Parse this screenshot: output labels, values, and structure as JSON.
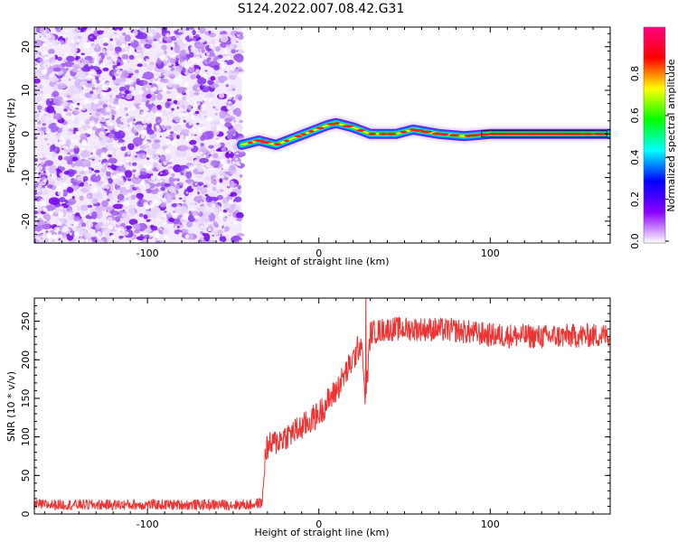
{
  "title": "S124.2022.007.08.42.G31",
  "chart_data": [
    {
      "type": "heatmap",
      "xlabel": "Height of straight line (km)",
      "ylabel": "Frequency (Hz)",
      "xlim": [
        -166,
        170
      ],
      "ylim": [
        -25,
        24.5
      ],
      "xticks": [
        -100,
        0,
        100
      ],
      "yticks": [
        -20,
        -10,
        0,
        10,
        20
      ],
      "colorbar": {
        "label": "Normalized spectral amplitude",
        "range": [
          0,
          1
        ],
        "ticks": [
          "0.0",
          "0.2",
          "0.4",
          "0.6",
          "0.8"
        ],
        "colormap": "hsv-rainbow",
        "colors": [
          "#ffffff",
          "#8b00ff",
          "#0000ff",
          "#00ffff",
          "#00ff00",
          "#ffff00",
          "#ff0000",
          "#ff0080"
        ]
      },
      "noise_region_end_km": -45,
      "signal_track": [
        {
          "x": -45,
          "y": -2.5
        },
        {
          "x": -35,
          "y": -1.5
        },
        {
          "x": -25,
          "y": -2.5
        },
        {
          "x": -15,
          "y": -1
        },
        {
          "x": -5,
          "y": 0.5
        },
        {
          "x": 5,
          "y": 2
        },
        {
          "x": 10,
          "y": 2.5
        },
        {
          "x": 20,
          "y": 1.5
        },
        {
          "x": 30,
          "y": 0
        },
        {
          "x": 45,
          "y": 0
        },
        {
          "x": 55,
          "y": 1
        },
        {
          "x": 70,
          "y": 0
        },
        {
          "x": 85,
          "y": -0.5
        },
        {
          "x": 100,
          "y": 0
        },
        {
          "x": 130,
          "y": 0
        },
        {
          "x": 170,
          "y": 0
        }
      ]
    },
    {
      "type": "line",
      "xlabel": "Height of straight line (km)",
      "ylabel": "SNR (10 * v/v)",
      "xlim": [
        -166,
        170
      ],
      "ylim": [
        0,
        280
      ],
      "xticks": [
        -100,
        0,
        100
      ],
      "yticks": [
        0,
        50,
        100,
        150,
        200,
        250
      ],
      "color": "#ee3333",
      "series_envelope": [
        {
          "x": -166,
          "y": 12
        },
        {
          "x": -40,
          "y": 12
        },
        {
          "x": -33,
          "y": 15
        },
        {
          "x": -31,
          "y": 85
        },
        {
          "x": -20,
          "y": 100
        },
        {
          "x": -10,
          "y": 112
        },
        {
          "x": 0,
          "y": 130
        },
        {
          "x": 10,
          "y": 160
        },
        {
          "x": 20,
          "y": 200
        },
        {
          "x": 25,
          "y": 225
        },
        {
          "x": 27,
          "y": 130
        },
        {
          "x": 30,
          "y": 235
        },
        {
          "x": 40,
          "y": 240
        },
        {
          "x": 60,
          "y": 240
        },
        {
          "x": 80,
          "y": 238
        },
        {
          "x": 100,
          "y": 232
        },
        {
          "x": 130,
          "y": 230
        },
        {
          "x": 170,
          "y": 232
        }
      ]
    }
  ]
}
